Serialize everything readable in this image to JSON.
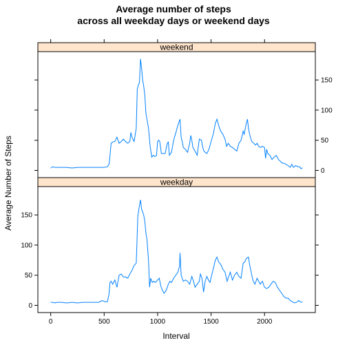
{
  "chart_data": {
    "type": "line",
    "title": "Average number of steps",
    "subtitle": "across all weekday days or weekend days",
    "xlabel": "Interval",
    "ylabel": "Average Number of Steps",
    "xlim": [
      -120,
      2475
    ],
    "ylim": [
      -12,
      197
    ],
    "x_ticks": [
      0,
      500,
      1000,
      1500,
      2000
    ],
    "y_ticks": [
      0,
      50,
      100,
      150
    ],
    "line_color": "#0080ff",
    "strip_color": "#ffe5cc",
    "panels": [
      {
        "name": "weekend",
        "points": [
          [
            0,
            4
          ],
          [
            20,
            6
          ],
          [
            40,
            5
          ],
          [
            60,
            5
          ],
          [
            100,
            5
          ],
          [
            150,
            5
          ],
          [
            200,
            4
          ],
          [
            250,
            5
          ],
          [
            300,
            5
          ],
          [
            350,
            5
          ],
          [
            400,
            5
          ],
          [
            450,
            5
          ],
          [
            500,
            5
          ],
          [
            530,
            6
          ],
          [
            545,
            10
          ],
          [
            555,
            25
          ],
          [
            565,
            45
          ],
          [
            580,
            47
          ],
          [
            600,
            48
          ],
          [
            620,
            55
          ],
          [
            640,
            45
          ],
          [
            660,
            48
          ],
          [
            680,
            52
          ],
          [
            700,
            48
          ],
          [
            720,
            45
          ],
          [
            740,
            48
          ],
          [
            750,
            63
          ],
          [
            760,
            55
          ],
          [
            780,
            48
          ],
          [
            800,
            70
          ],
          [
            810,
            135
          ],
          [
            820,
            142
          ],
          [
            830,
            145
          ],
          [
            840,
            185
          ],
          [
            850,
            170
          ],
          [
            860,
            150
          ],
          [
            870,
            140
          ],
          [
            880,
            125
          ],
          [
            890,
            95
          ],
          [
            900,
            85
          ],
          [
            915,
            70
          ],
          [
            930,
            40
          ],
          [
            945,
            22
          ],
          [
            960,
            25
          ],
          [
            975,
            23
          ],
          [
            990,
            25
          ],
          [
            1000,
            48
          ],
          [
            1010,
            50
          ],
          [
            1020,
            48
          ],
          [
            1035,
            28
          ],
          [
            1050,
            28
          ],
          [
            1070,
            28
          ],
          [
            1090,
            45
          ],
          [
            1100,
            47
          ],
          [
            1110,
            25
          ],
          [
            1130,
            30
          ],
          [
            1150,
            50
          ],
          [
            1170,
            62
          ],
          [
            1190,
            75
          ],
          [
            1210,
            85
          ],
          [
            1220,
            55
          ],
          [
            1230,
            48
          ],
          [
            1240,
            38
          ],
          [
            1260,
            35
          ],
          [
            1280,
            30
          ],
          [
            1300,
            45
          ],
          [
            1310,
            58
          ],
          [
            1320,
            50
          ],
          [
            1330,
            38
          ],
          [
            1350,
            32
          ],
          [
            1370,
            25
          ],
          [
            1390,
            52
          ],
          [
            1410,
            50
          ],
          [
            1420,
            40
          ],
          [
            1430,
            33
          ],
          [
            1445,
            30
          ],
          [
            1460,
            28
          ],
          [
            1480,
            35
          ],
          [
            1500,
            48
          ],
          [
            1520,
            60
          ],
          [
            1540,
            78
          ],
          [
            1555,
            85
          ],
          [
            1570,
            75
          ],
          [
            1590,
            65
          ],
          [
            1610,
            60
          ],
          [
            1630,
            52
          ],
          [
            1645,
            40
          ],
          [
            1660,
            45
          ],
          [
            1680,
            40
          ],
          [
            1700,
            38
          ],
          [
            1720,
            35
          ],
          [
            1740,
            32
          ],
          [
            1760,
            45
          ],
          [
            1780,
            50
          ],
          [
            1800,
            65
          ],
          [
            1810,
            60
          ],
          [
            1820,
            70
          ],
          [
            1830,
            78
          ],
          [
            1840,
            85
          ],
          [
            1850,
            70
          ],
          [
            1860,
            60
          ],
          [
            1880,
            48
          ],
          [
            1900,
            45
          ],
          [
            1915,
            42
          ],
          [
            1930,
            45
          ],
          [
            1945,
            40
          ],
          [
            1960,
            38
          ],
          [
            1980,
            40
          ],
          [
            2000,
            38
          ],
          [
            2010,
            20
          ],
          [
            2020,
            35
          ],
          [
            2030,
            28
          ],
          [
            2050,
            25
          ],
          [
            2070,
            18
          ],
          [
            2090,
            22
          ],
          [
            2110,
            25
          ],
          [
            2130,
            18
          ],
          [
            2150,
            15
          ],
          [
            2165,
            12
          ],
          [
            2180,
            12
          ],
          [
            2200,
            10
          ],
          [
            2220,
            8
          ],
          [
            2240,
            5
          ],
          [
            2255,
            10
          ],
          [
            2270,
            5
          ],
          [
            2290,
            8
          ],
          [
            2310,
            6
          ],
          [
            2330,
            6
          ],
          [
            2340,
            3
          ],
          [
            2355,
            4
          ]
        ]
      },
      {
        "name": "weekday",
        "points": [
          [
            0,
            5
          ],
          [
            20,
            5
          ],
          [
            40,
            4
          ],
          [
            60,
            5
          ],
          [
            100,
            5
          ],
          [
            150,
            4
          ],
          [
            200,
            5
          ],
          [
            250,
            4
          ],
          [
            300,
            5
          ],
          [
            350,
            5
          ],
          [
            400,
            5
          ],
          [
            450,
            5
          ],
          [
            480,
            8
          ],
          [
            510,
            6
          ],
          [
            530,
            6
          ],
          [
            545,
            18
          ],
          [
            555,
            38
          ],
          [
            565,
            40
          ],
          [
            580,
            35
          ],
          [
            600,
            42
          ],
          [
            620,
            30
          ],
          [
            640,
            50
          ],
          [
            660,
            52
          ],
          [
            680,
            47
          ],
          [
            700,
            47
          ],
          [
            720,
            45
          ],
          [
            740,
            52
          ],
          [
            760,
            58
          ],
          [
            780,
            66
          ],
          [
            800,
            70
          ],
          [
            815,
            148
          ],
          [
            830,
            165
          ],
          [
            840,
            175
          ],
          [
            850,
            160
          ],
          [
            860,
            155
          ],
          [
            870,
            150
          ],
          [
            880,
            140
          ],
          [
            890,
            120
          ],
          [
            900,
            110
          ],
          [
            915,
            75
          ],
          [
            925,
            30
          ],
          [
            935,
            45
          ],
          [
            950,
            38
          ],
          [
            965,
            40
          ],
          [
            980,
            38
          ],
          [
            1000,
            42
          ],
          [
            1015,
            45
          ],
          [
            1030,
            32
          ],
          [
            1045,
            25
          ],
          [
            1060,
            20
          ],
          [
            1080,
            25
          ],
          [
            1100,
            35
          ],
          [
            1115,
            40
          ],
          [
            1130,
            38
          ],
          [
            1150,
            45
          ],
          [
            1170,
            50
          ],
          [
            1190,
            55
          ],
          [
            1205,
            65
          ],
          [
            1210,
            87
          ],
          [
            1220,
            50
          ],
          [
            1240,
            40
          ],
          [
            1260,
            42
          ],
          [
            1280,
            40
          ],
          [
            1300,
            35
          ],
          [
            1320,
            48
          ],
          [
            1335,
            40
          ],
          [
            1350,
            30
          ],
          [
            1370,
            35
          ],
          [
            1390,
            40
          ],
          [
            1400,
            52
          ],
          [
            1415,
            45
          ],
          [
            1430,
            22
          ],
          [
            1445,
            40
          ],
          [
            1460,
            48
          ],
          [
            1475,
            42
          ],
          [
            1490,
            38
          ],
          [
            1505,
            50
          ],
          [
            1520,
            60
          ],
          [
            1540,
            75
          ],
          [
            1555,
            80
          ],
          [
            1570,
            72
          ],
          [
            1590,
            68
          ],
          [
            1610,
            60
          ],
          [
            1630,
            55
          ],
          [
            1650,
            40
          ],
          [
            1665,
            48
          ],
          [
            1680,
            55
          ],
          [
            1700,
            42
          ],
          [
            1720,
            50
          ],
          [
            1740,
            55
          ],
          [
            1760,
            48
          ],
          [
            1780,
            45
          ],
          [
            1800,
            70
          ],
          [
            1815,
            72
          ],
          [
            1830,
            78
          ],
          [
            1850,
            80
          ],
          [
            1860,
            68
          ],
          [
            1870,
            60
          ],
          [
            1880,
            50
          ],
          [
            1895,
            40
          ],
          [
            1910,
            35
          ],
          [
            1930,
            45
          ],
          [
            1945,
            40
          ],
          [
            1960,
            35
          ],
          [
            1980,
            40
          ],
          [
            2000,
            30
          ],
          [
            2020,
            28
          ],
          [
            2040,
            30
          ],
          [
            2060,
            35
          ],
          [
            2080,
            40
          ],
          [
            2100,
            38
          ],
          [
            2120,
            30
          ],
          [
            2140,
            25
          ],
          [
            2160,
            20
          ],
          [
            2180,
            15
          ],
          [
            2200,
            12
          ],
          [
            2220,
            12
          ],
          [
            2240,
            8
          ],
          [
            2260,
            6
          ],
          [
            2280,
            4
          ],
          [
            2300,
            5
          ],
          [
            2320,
            8
          ],
          [
            2340,
            5
          ],
          [
            2355,
            6
          ]
        ]
      }
    ]
  }
}
